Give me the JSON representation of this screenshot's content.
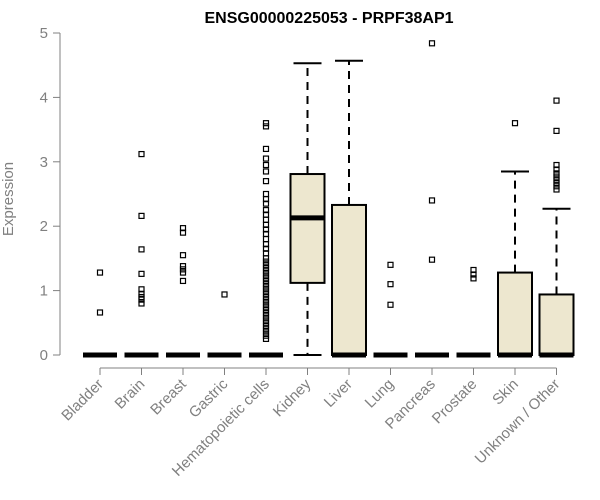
{
  "chart_data": {
    "type": "boxplot",
    "title": "ENSG00000225053 - PRPF38AP1",
    "xlabel": "",
    "ylabel": "Expression",
    "ylim": [
      0,
      5
    ],
    "yticks": [
      0,
      1,
      2,
      3,
      4,
      5
    ],
    "grid": false,
    "legend": "none",
    "box_fill": "#ede7cf",
    "categories": [
      "Bladder",
      "Brain",
      "Breast",
      "Gastric",
      "Hematopoietic cells",
      "Kidney",
      "Liver",
      "Lung",
      "Pancreas",
      "Prostate",
      "Skin",
      "Unknown / Other"
    ],
    "boxes": [
      {
        "q1": 0,
        "median": 0,
        "q3": 0,
        "whisker_low": 0,
        "whisker_high": 0,
        "outliers": [
          1.28,
          0.66
        ]
      },
      {
        "q1": 0,
        "median": 0,
        "q3": 0,
        "whisker_low": 0,
        "whisker_high": 0,
        "outliers": [
          3.12,
          2.16,
          1.64,
          1.26,
          1.02,
          0.95,
          0.9,
          0.86,
          0.8
        ]
      },
      {
        "q1": 0,
        "median": 0,
        "q3": 0,
        "whisker_low": 0,
        "whisker_high": 0,
        "outliers": [
          1.97,
          1.9,
          1.55,
          1.38,
          1.33,
          1.28,
          1.15
        ]
      },
      {
        "q1": 0,
        "median": 0,
        "q3": 0,
        "whisker_low": 0,
        "whisker_high": 0,
        "outliers": [
          0.94
        ]
      },
      {
        "q1": 0,
        "median": 0,
        "q3": 0,
        "whisker_low": 0,
        "whisker_high": 0,
        "outliers": [
          3.6,
          3.55,
          3.2,
          3.05,
          2.95,
          2.85,
          2.7,
          2.5,
          2.42,
          2.35,
          2.25,
          2.18,
          2.1,
          2.02,
          1.95,
          1.88,
          1.8,
          1.72,
          1.65,
          1.58,
          1.5,
          1.45,
          1.4,
          1.35,
          1.3,
          1.25,
          1.2,
          1.15,
          1.1,
          1.05,
          1.0,
          0.95,
          0.9,
          0.85,
          0.8,
          0.75,
          0.7,
          0.65,
          0.6,
          0.55,
          0.5,
          0.45,
          0.4,
          0.35,
          0.3,
          0.25
        ]
      },
      {
        "q1": 1.12,
        "median": 2.13,
        "q3": 2.81,
        "whisker_low": 0,
        "whisker_high": 4.53,
        "outliers": []
      },
      {
        "q1": 0,
        "median": 0,
        "q3": 2.33,
        "whisker_low": 0,
        "whisker_high": 4.57,
        "outliers": []
      },
      {
        "q1": 0,
        "median": 0,
        "q3": 0,
        "whisker_low": 0,
        "whisker_high": 0,
        "outliers": [
          1.4,
          1.1,
          0.78
        ]
      },
      {
        "q1": 0,
        "median": 0,
        "q3": 0,
        "whisker_low": 0,
        "whisker_high": 0,
        "outliers": [
          4.84,
          2.4,
          1.48
        ]
      },
      {
        "q1": 0,
        "median": 0,
        "q3": 0,
        "whisker_low": 0,
        "whisker_high": 0,
        "outliers": [
          1.32,
          1.25,
          1.19
        ]
      },
      {
        "q1": 0,
        "median": 0,
        "q3": 1.28,
        "whisker_low": 0,
        "whisker_high": 2.85,
        "outliers": [
          3.6
        ]
      },
      {
        "q1": 0,
        "median": 0,
        "q3": 0.94,
        "whisker_low": 0,
        "whisker_high": 2.27,
        "outliers": [
          3.95,
          3.48,
          2.95,
          2.88,
          2.82,
          2.77,
          2.72,
          2.67,
          2.62,
          2.57
        ]
      }
    ]
  }
}
